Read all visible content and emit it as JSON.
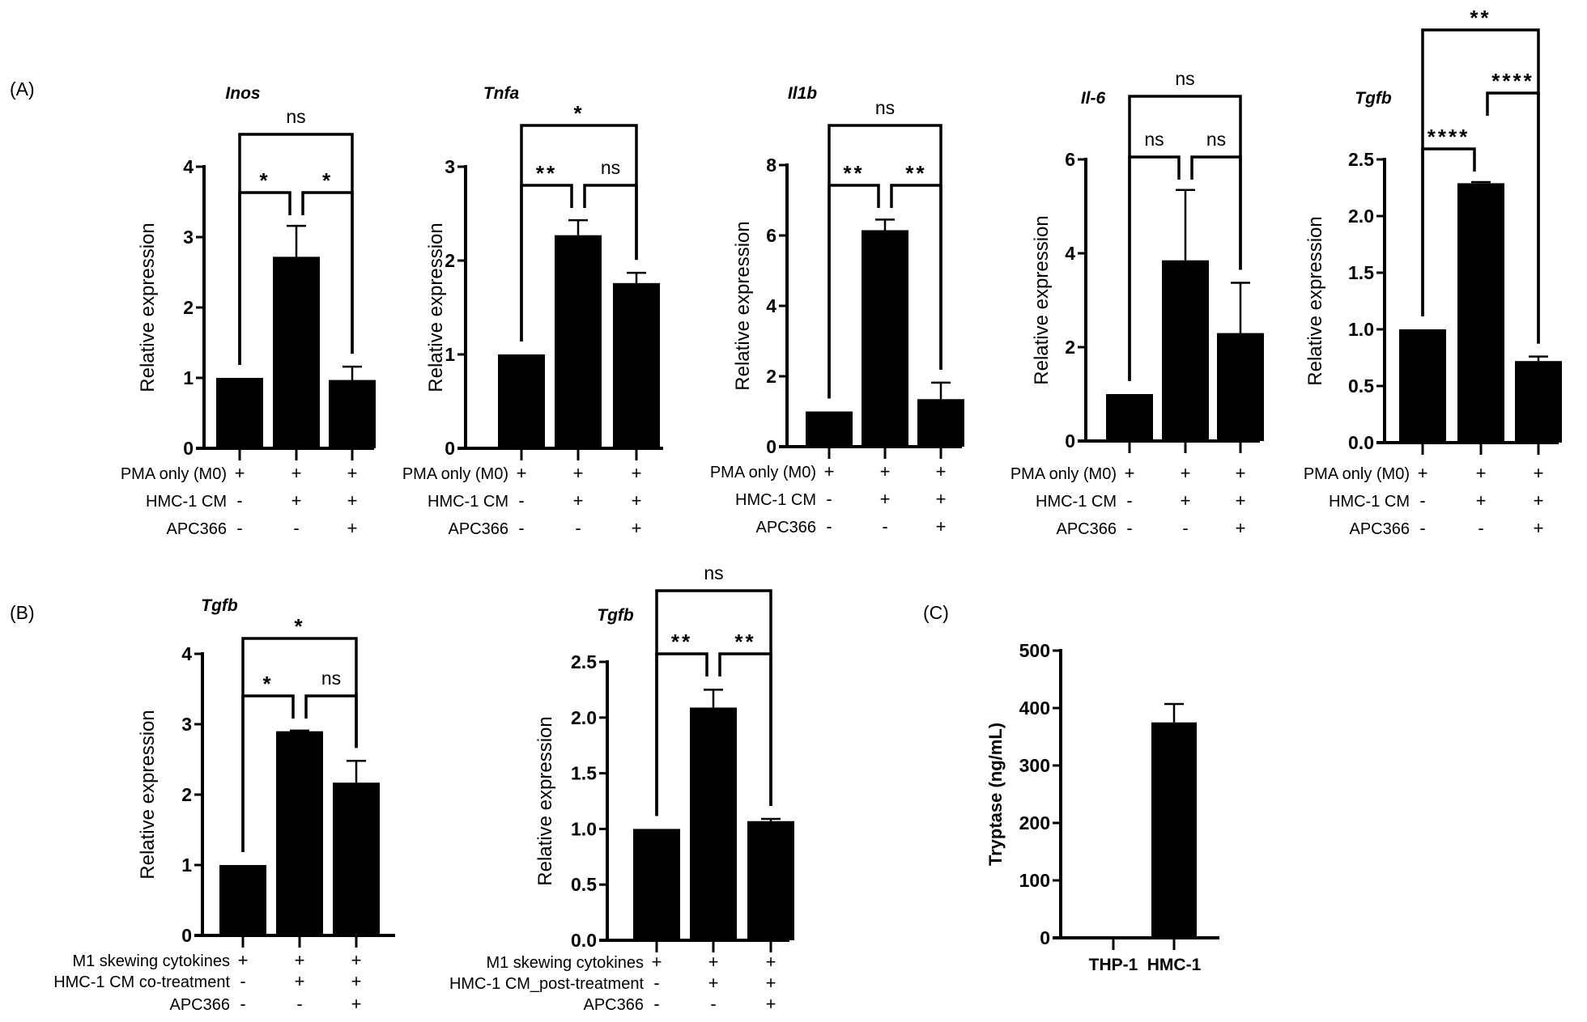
{
  "panels": {
    "a": "(A)",
    "b": "(B)",
    "c": "(C)"
  },
  "chart_data": [
    {
      "type": "bar",
      "panel": "A",
      "title": "Inos",
      "ylabel": "Relative expression",
      "ylim": [
        0,
        4
      ],
      "yticks": [
        "0",
        "1",
        "2",
        "3",
        "4"
      ],
      "values": [
        1,
        2.72,
        0.97
      ],
      "errors": [
        0,
        0.44,
        0.19
      ],
      "conditions": [
        {
          "label": "PMA only (M0)",
          "signs": [
            "+",
            "+",
            "+"
          ]
        },
        {
          "label": "HMC-1 CM",
          "signs": [
            "-",
            "+",
            "+"
          ]
        },
        {
          "label": "APC366",
          "signs": [
            "-",
            "-",
            "+"
          ]
        }
      ],
      "comparisons": [
        {
          "from": 0,
          "to": 1,
          "tier": 1,
          "label": "*"
        },
        {
          "from": 1,
          "to": 2,
          "tier": 1,
          "label": "*"
        },
        {
          "from": 0,
          "to": 2,
          "tier": 2,
          "label": "ns"
        }
      ]
    },
    {
      "type": "bar",
      "panel": "A",
      "title": "Tnfa",
      "ylabel": "Relative expression",
      "ylim": [
        0,
        3
      ],
      "yticks": [
        "0",
        "1",
        "2",
        "3"
      ],
      "values": [
        1,
        2.27,
        1.76
      ],
      "errors": [
        0,
        0.16,
        0.11
      ],
      "conditions": [
        {
          "label": "PMA only (M0)",
          "signs": [
            "+",
            "+",
            "+"
          ]
        },
        {
          "label": "HMC-1 CM",
          "signs": [
            "-",
            "+",
            "+"
          ]
        },
        {
          "label": "APC366",
          "signs": [
            "-",
            "-",
            "+"
          ]
        }
      ],
      "comparisons": [
        {
          "from": 0,
          "to": 1,
          "tier": 1,
          "label": "**"
        },
        {
          "from": 1,
          "to": 2,
          "tier": 1,
          "label": "ns"
        },
        {
          "from": 0,
          "to": 2,
          "tier": 2,
          "label": "*"
        }
      ]
    },
    {
      "type": "bar",
      "panel": "A",
      "title": "Il1b",
      "ylabel": "Relative expression",
      "ylim": [
        0,
        8
      ],
      "yticks": [
        "0",
        "2",
        "4",
        "6",
        "8"
      ],
      "values": [
        1,
        6.15,
        1.35
      ],
      "errors": [
        0,
        0.3,
        0.47
      ],
      "conditions": [
        {
          "label": "PMA only (M0)",
          "signs": [
            "+",
            "+",
            "+"
          ]
        },
        {
          "label": "HMC-1 CM",
          "signs": [
            "-",
            "+",
            "+"
          ]
        },
        {
          "label": "APC366",
          "signs": [
            "-",
            "-",
            "+"
          ]
        }
      ],
      "comparisons": [
        {
          "from": 0,
          "to": 1,
          "tier": 1,
          "label": "**"
        },
        {
          "from": 1,
          "to": 2,
          "tier": 1,
          "label": "**"
        },
        {
          "from": 0,
          "to": 2,
          "tier": 2,
          "label": "ns"
        }
      ]
    },
    {
      "type": "bar",
      "panel": "A",
      "title": "Il-6",
      "ylabel": "Relative expression",
      "ylim": [
        0,
        6
      ],
      "yticks": [
        "0",
        "2",
        "4",
        "6"
      ],
      "values": [
        1,
        3.85,
        2.3
      ],
      "errors": [
        0,
        1.5,
        1.07
      ],
      "conditions": [
        {
          "label": "PMA only (M0)",
          "signs": [
            "+",
            "+",
            "+"
          ]
        },
        {
          "label": "HMC-1 CM",
          "signs": [
            "-",
            "+",
            "+"
          ]
        },
        {
          "label": "APC366",
          "signs": [
            "-",
            "-",
            "+"
          ]
        }
      ],
      "comparisons": [
        {
          "from": 0,
          "to": 1,
          "tier": 1,
          "label": "ns"
        },
        {
          "from": 1,
          "to": 2,
          "tier": 1,
          "label": "ns"
        },
        {
          "from": 0,
          "to": 2,
          "tier": 2,
          "label": "ns"
        }
      ]
    },
    {
      "type": "bar",
      "panel": "A",
      "title": "Tgfb",
      "ylabel": "Relative expression",
      "ylim": [
        0,
        2.5
      ],
      "yticks": [
        "0.0",
        "0.5",
        "1.0",
        "1.5",
        "2.0",
        "2.5"
      ],
      "values": [
        1,
        2.29,
        0.72
      ],
      "errors": [
        0,
        0.01,
        0.04
      ],
      "conditions": [
        {
          "label": "PMA only (M0)",
          "signs": [
            "+",
            "+",
            "+"
          ]
        },
        {
          "label": "HMC-1 CM",
          "signs": [
            "-",
            "+",
            "+"
          ]
        },
        {
          "label": "APC366",
          "signs": [
            "-",
            "-",
            "+"
          ]
        }
      ],
      "comparisons": [
        {
          "from": 0,
          "to": 1,
          "tier": 1,
          "label": "****"
        },
        {
          "from": 1,
          "to": 2,
          "tier": 2,
          "label": "****"
        },
        {
          "from": 0,
          "to": 2,
          "tier": 3,
          "label": "**"
        }
      ]
    },
    {
      "type": "bar",
      "panel": "B",
      "title": "Tgfb",
      "ylabel": "Relative expression",
      "ylim": [
        0,
        4
      ],
      "yticks": [
        "0",
        "1",
        "2",
        "3",
        "4"
      ],
      "values": [
        1,
        2.9,
        2.17
      ],
      "errors": [
        0,
        0.01,
        0.31
      ],
      "conditions": [
        {
          "label": "M1 skewing cytokines",
          "signs": [
            "+",
            "+",
            "+"
          ]
        },
        {
          "label": "HMC-1 CM co-treatment",
          "signs": [
            "-",
            "+",
            "+"
          ]
        },
        {
          "label": "APC366",
          "signs": [
            "-",
            "-",
            "+"
          ]
        }
      ],
      "comparisons": [
        {
          "from": 0,
          "to": 1,
          "tier": 1,
          "label": "*"
        },
        {
          "from": 1,
          "to": 2,
          "tier": 1,
          "label": "ns"
        },
        {
          "from": 0,
          "to": 2,
          "tier": 2,
          "label": "*"
        }
      ]
    },
    {
      "type": "bar",
      "panel": "B",
      "title": "Tgfb",
      "ylabel": "Relative expression",
      "ylim": [
        0,
        2.5
      ],
      "yticks": [
        "0.0",
        "0.5",
        "1.0",
        "1.5",
        "2.0",
        "2.5"
      ],
      "values": [
        1,
        2.09,
        1.07
      ],
      "errors": [
        0,
        0.16,
        0.02
      ],
      "conditions": [
        {
          "label": "M1 skewing cytokines",
          "signs": [
            "+",
            "+",
            "+"
          ]
        },
        {
          "label": "HMC-1 CM_post-treatment",
          "signs": [
            "-",
            "+",
            "+"
          ]
        },
        {
          "label": "APC366",
          "signs": [
            "-",
            "-",
            "+"
          ]
        }
      ],
      "comparisons": [
        {
          "from": 0,
          "to": 1,
          "tier": 1,
          "label": "**"
        },
        {
          "from": 1,
          "to": 2,
          "tier": 1,
          "label": "**"
        },
        {
          "from": 0,
          "to": 2,
          "tier": 2,
          "label": "ns"
        }
      ]
    },
    {
      "type": "bar",
      "panel": "C",
      "title": "",
      "ylabel": "Tryptase (ng/mL)",
      "ylim": [
        0,
        500
      ],
      "yticks": [
        "0",
        "100",
        "200",
        "300",
        "400",
        "500"
      ],
      "values": [
        0,
        375
      ],
      "errors": [
        0,
        32
      ],
      "categories": [
        "THP-1",
        "HMC-1"
      ],
      "conditions": [],
      "comparisons": []
    }
  ]
}
